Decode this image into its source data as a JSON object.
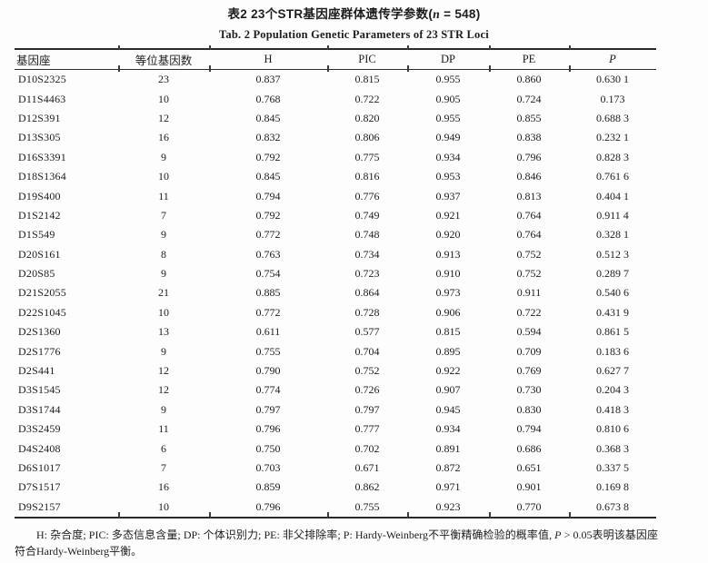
{
  "page": {
    "title_cn": {
      "pre": "表2  23个STR基因座群体遗传学参数(",
      "italic": "n",
      "post": " = 548)"
    },
    "title_en": "Tab. 2  Population Genetic Parameters of 23 STR Loci"
  },
  "table": {
    "columns": [
      {
        "key": "locus",
        "label": "基因座",
        "italic": false
      },
      {
        "key": "alleles",
        "label": "等位基因数",
        "italic": false
      },
      {
        "key": "h",
        "label": "H",
        "italic": false
      },
      {
        "key": "pic",
        "label": "PIC",
        "italic": false
      },
      {
        "key": "dp",
        "label": "DP",
        "italic": false
      },
      {
        "key": "pe",
        "label": "PE",
        "italic": false
      },
      {
        "key": "p",
        "label": "P",
        "italic": true
      }
    ],
    "rows": [
      [
        "D10S2325",
        "23",
        "0.837",
        "0.815",
        "0.955",
        "0.860",
        "0.630 1"
      ],
      [
        "D11S4463",
        "10",
        "0.768",
        "0.722",
        "0.905",
        "0.724",
        "0.173"
      ],
      [
        "D12S391",
        "12",
        "0.845",
        "0.820",
        "0.955",
        "0.855",
        "0.688 3"
      ],
      [
        "D13S305",
        "16",
        "0.832",
        "0.806",
        "0.949",
        "0.838",
        "0.232 1"
      ],
      [
        "D16S3391",
        "9",
        "0.792",
        "0.775",
        "0.934",
        "0.796",
        "0.828 3"
      ],
      [
        "D18S1364",
        "10",
        "0.845",
        "0.816",
        "0.953",
        "0.846",
        "0.761 6"
      ],
      [
        "D19S400",
        "11",
        "0.794",
        "0.776",
        "0.937",
        "0.813",
        "0.404 1"
      ],
      [
        "D1S2142",
        "7",
        "0.792",
        "0.749",
        "0.921",
        "0.764",
        "0.911 4"
      ],
      [
        "D1S549",
        "9",
        "0.772",
        "0.748",
        "0.920",
        "0.764",
        "0.328 1"
      ],
      [
        "D20S161",
        "8",
        "0.763",
        "0.734",
        "0.913",
        "0.752",
        "0.512 3"
      ],
      [
        "D20S85",
        "9",
        "0.754",
        "0.723",
        "0.910",
        "0.752",
        "0.289 7"
      ],
      [
        "D21S2055",
        "21",
        "0.885",
        "0.864",
        "0.973",
        "0.911",
        "0.540 6"
      ],
      [
        "D22S1045",
        "10",
        "0.772",
        "0.728",
        "0.906",
        "0.722",
        "0.431 9"
      ],
      [
        "D2S1360",
        "13",
        "0.611",
        "0.577",
        "0.815",
        "0.594",
        "0.861 5"
      ],
      [
        "D2S1776",
        "9",
        "0.755",
        "0.704",
        "0.895",
        "0.709",
        "0.183 6"
      ],
      [
        "D2S441",
        "12",
        "0.790",
        "0.752",
        "0.922",
        "0.769",
        "0.627 7"
      ],
      [
        "D3S1545",
        "12",
        "0.774",
        "0.726",
        "0.907",
        "0.730",
        "0.204 3"
      ],
      [
        "D3S1744",
        "9",
        "0.797",
        "0.797",
        "0.945",
        "0.830",
        "0.418 3"
      ],
      [
        "D3S2459",
        "11",
        "0.796",
        "0.777",
        "0.934",
        "0.794",
        "0.810 6"
      ],
      [
        "D4S2408",
        "6",
        "0.750",
        "0.702",
        "0.891",
        "0.686",
        "0.368 3"
      ],
      [
        "D6S1017",
        "7",
        "0.703",
        "0.671",
        "0.872",
        "0.651",
        "0.337 5"
      ],
      [
        "D7S1517",
        "16",
        "0.859",
        "0.862",
        "0.971",
        "0.901",
        "0.169 8"
      ],
      [
        "D9S2157",
        "10",
        "0.796",
        "0.755",
        "0.923",
        "0.770",
        "0.673 8"
      ]
    ]
  },
  "footnote": {
    "pre": "H: 杂合度; PIC: 多态信息含量; DP: 个体识别力; PE: 非父排除率; P: Hardy-Weinberg不平衡精确检验的概率值, ",
    "italic": "P",
    "post": " > 0.05表明该基因座符合Hardy-Weinberg平衡。"
  }
}
